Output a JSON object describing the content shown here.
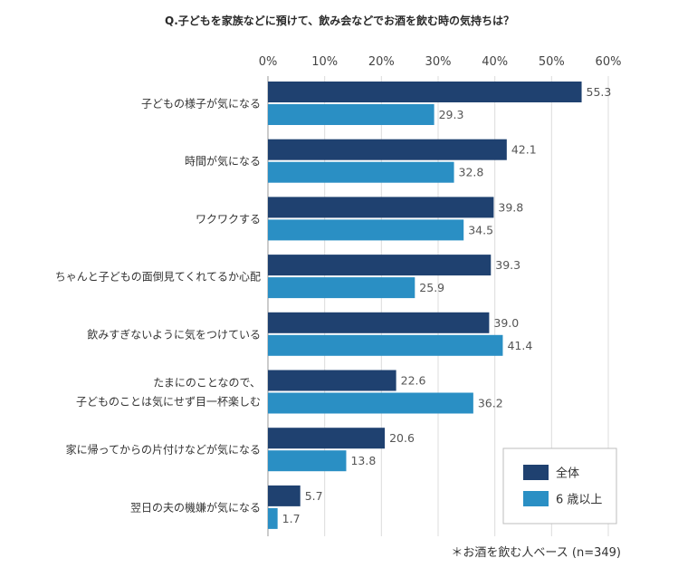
{
  "chart_data": {
    "type": "bar",
    "orientation": "horizontal",
    "title": "Q.子どもを家族などに預けて、飲み会などでお酒を飲む時の気持ちは？",
    "categories": [
      "子どもの様子が気になる",
      "時間が気になる",
      "ワクワクする",
      "ちゃんと子どもの面倒見てくれてるか心配",
      "飲みすぎないように気をつけている",
      "たまにのことなので、\n子どものことは気にせず目一杯楽しむ",
      "家に帰ってからの片付けなどが気になる",
      "翌日の夫の機嫌が気になる"
    ],
    "series": [
      {
        "name": "全体",
        "color": "#1f4170",
        "values": [
          55.3,
          42.1,
          39.8,
          39.3,
          39.0,
          22.6,
          20.6,
          5.7
        ]
      },
      {
        "name": "6 歳以上",
        "color": "#2a8fc4",
        "values": [
          29.3,
          32.8,
          34.5,
          25.9,
          41.4,
          36.2,
          13.8,
          1.7
        ]
      }
    ],
    "xlim": [
      0,
      60
    ],
    "xticks": [
      "0%",
      "10%",
      "20%",
      "30%",
      "40%",
      "50%",
      "60%"
    ],
    "grid": true,
    "legend": "bottom-right",
    "note": "＊お酒を飲む人ベース (n=349)"
  }
}
